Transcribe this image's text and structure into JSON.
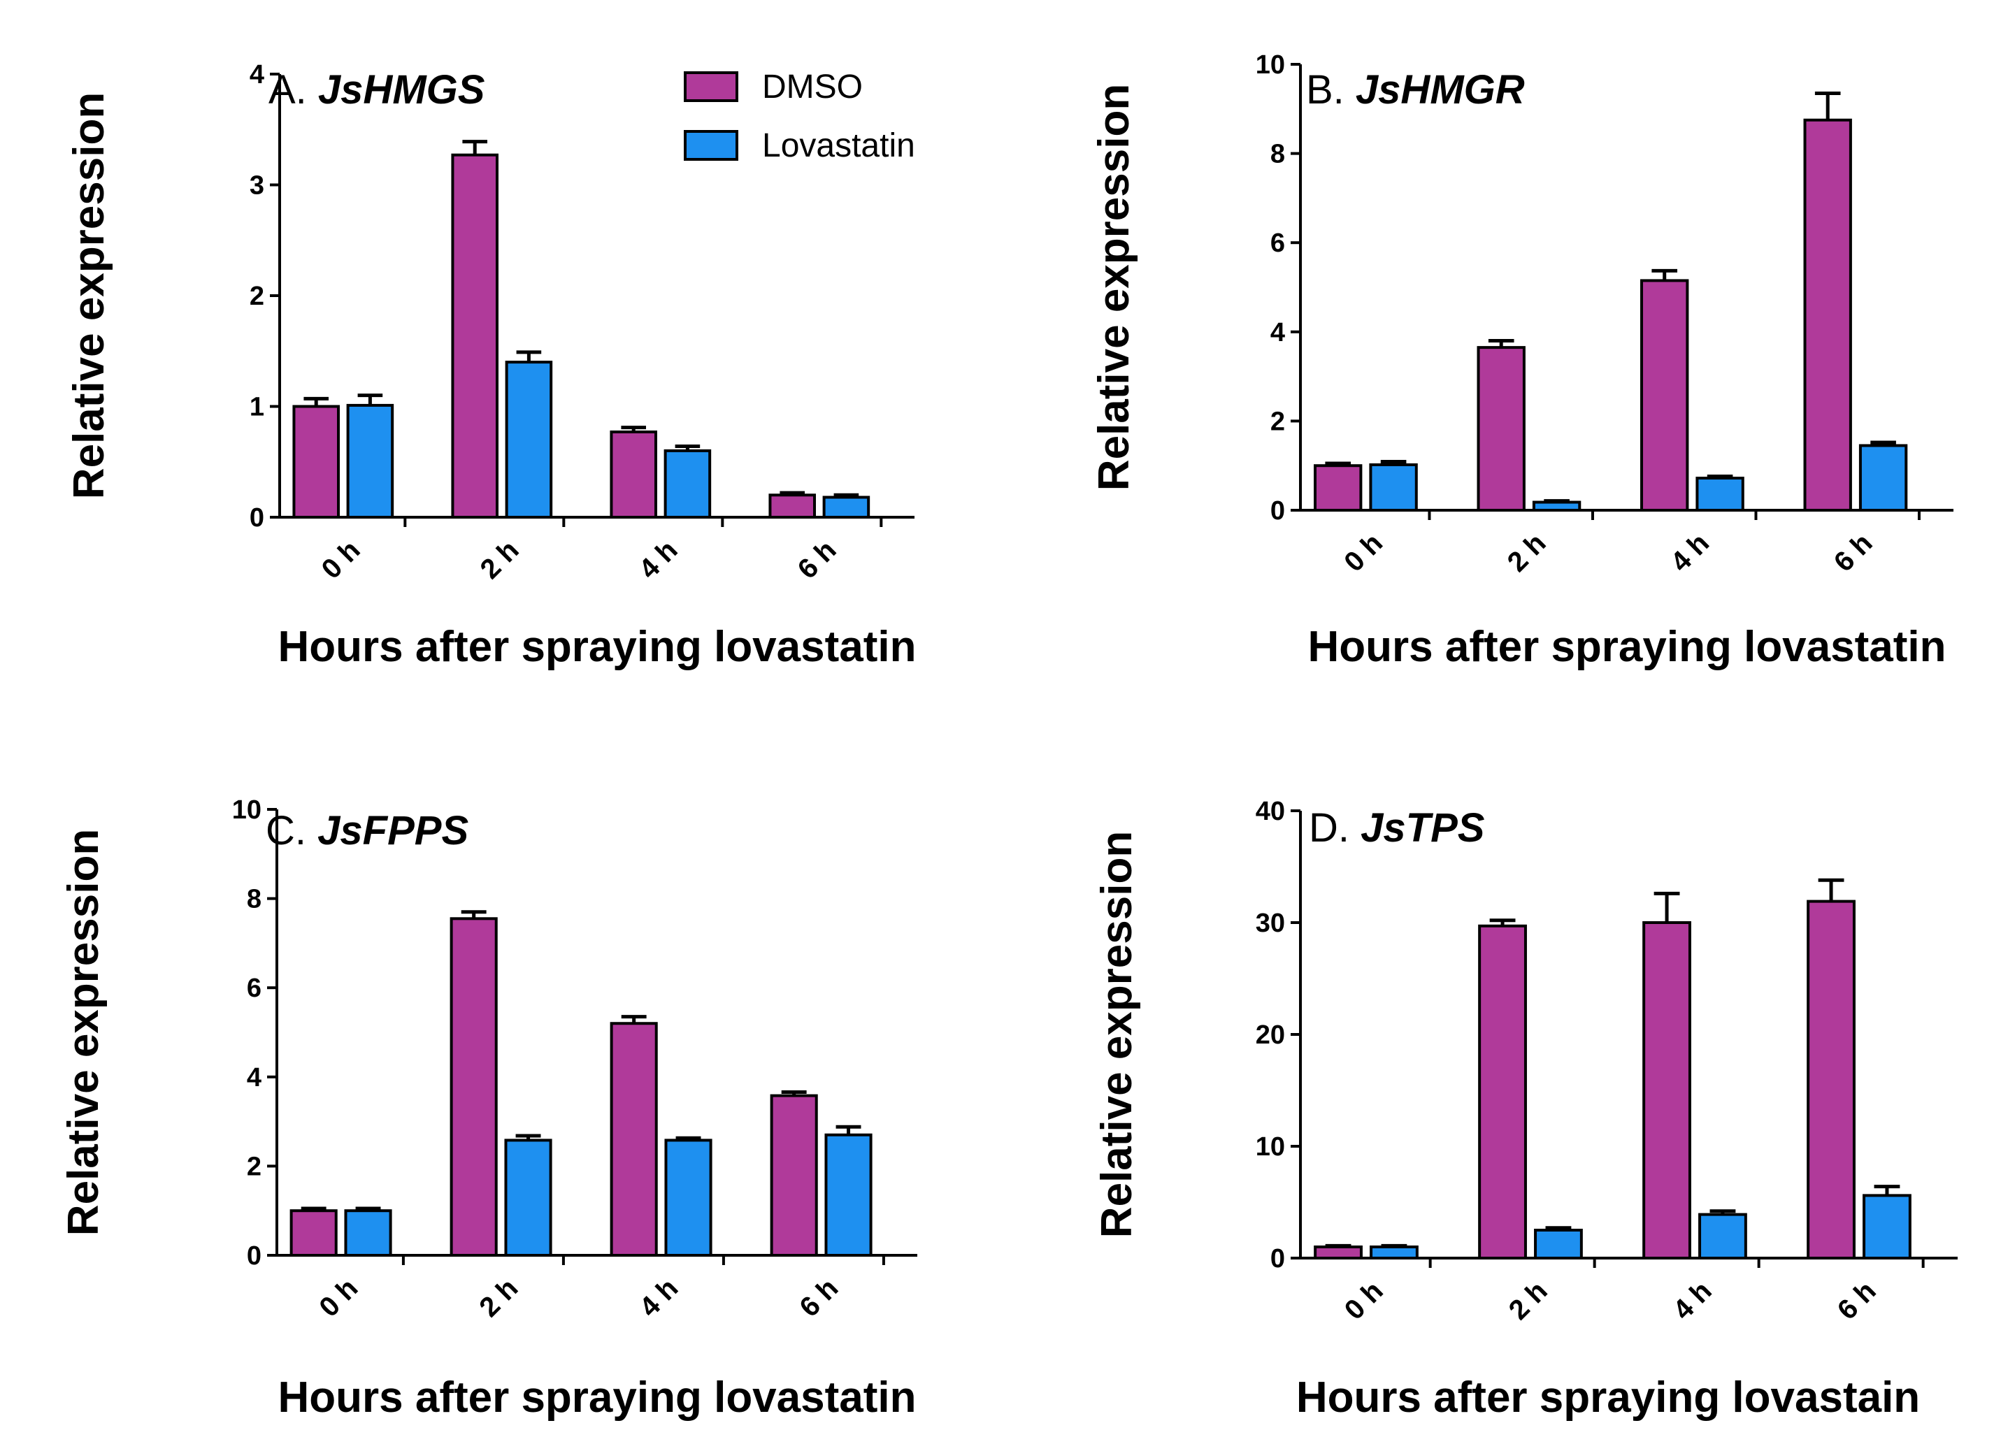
{
  "chart_data": [
    {
      "type": "bar",
      "panel": "A.",
      "gene": "JsHMGS",
      "categories": [
        "0 h",
        "2 h",
        "4 h",
        "6 h"
      ],
      "series": [
        {
          "name": "DMSO",
          "color": "#B03A9A",
          "values": [
            1.0,
            3.27,
            0.77,
            0.2
          ],
          "errors": [
            0.07,
            0.12,
            0.04,
            0.02
          ]
        },
        {
          "name": "Lovastatin",
          "color": "#1E90F0",
          "values": [
            1.01,
            1.4,
            0.6,
            0.18
          ],
          "errors": [
            0.09,
            0.09,
            0.04,
            0.02
          ]
        }
      ],
      "xlabel": "Hours after spraying lovastatin",
      "ylabel": "Relative expression",
      "ylim": [
        0,
        4
      ],
      "yticks": [
        "0",
        "1",
        "2",
        "3",
        "4"
      ],
      "legend": "top-right"
    },
    {
      "type": "bar",
      "panel": "B.",
      "gene": "JsHMGR",
      "categories": [
        "0 h",
        "2 h",
        "4 h",
        "6 h"
      ],
      "series": [
        {
          "name": "DMSO",
          "color": "#B03A9A",
          "values": [
            1.0,
            3.65,
            5.15,
            8.75
          ],
          "errors": [
            0.05,
            0.15,
            0.22,
            0.6
          ]
        },
        {
          "name": "Lovastatin",
          "color": "#1E90F0",
          "values": [
            1.02,
            0.18,
            0.72,
            1.45
          ],
          "errors": [
            0.07,
            0.03,
            0.04,
            0.07
          ]
        }
      ],
      "xlabel": "Hours after spraying lovastatin",
      "ylabel": "Relative expression",
      "ylim": [
        0,
        10
      ],
      "yticks": [
        "0",
        "2",
        "4",
        "6",
        "8",
        "10"
      ]
    },
    {
      "type": "bar",
      "panel": "C.",
      "gene": "JsFPPS",
      "categories": [
        "0 h",
        "2 h",
        "4 h",
        "6 h"
      ],
      "series": [
        {
          "name": "DMSO",
          "color": "#B03A9A",
          "values": [
            1.0,
            7.55,
            5.2,
            3.58
          ],
          "errors": [
            0.05,
            0.15,
            0.15,
            0.08
          ]
        },
        {
          "name": "Lovastatin",
          "color": "#1E90F0",
          "values": [
            1.0,
            2.58,
            2.58,
            2.7
          ],
          "errors": [
            0.05,
            0.1,
            0.05,
            0.18
          ]
        }
      ],
      "xlabel": "Hours after spraying lovastatin",
      "ylabel": "Relative expression",
      "ylim": [
        0,
        10
      ],
      "yticks": [
        "0",
        "2",
        "4",
        "6",
        "8",
        "10"
      ]
    },
    {
      "type": "bar",
      "panel": "D.",
      "gene": "JsTPS",
      "categories": [
        "0 h",
        "2 h",
        "4 h",
        "6 h"
      ],
      "series": [
        {
          "name": "DMSO",
          "color": "#B03A9A",
          "values": [
            1.0,
            29.7,
            30.0,
            31.9
          ],
          "errors": [
            0.1,
            0.5,
            2.6,
            1.9
          ]
        },
        {
          "name": "Lovastatin",
          "color": "#1E90F0",
          "values": [
            1.0,
            2.5,
            3.9,
            5.6
          ],
          "errors": [
            0.1,
            0.2,
            0.3,
            0.8
          ]
        }
      ],
      "xlabel": "Hours after spraying lovastain",
      "ylabel": "Relative expression",
      "ylim": [
        0,
        40
      ],
      "yticks": [
        "0",
        "10",
        "20",
        "30",
        "40"
      ]
    }
  ]
}
